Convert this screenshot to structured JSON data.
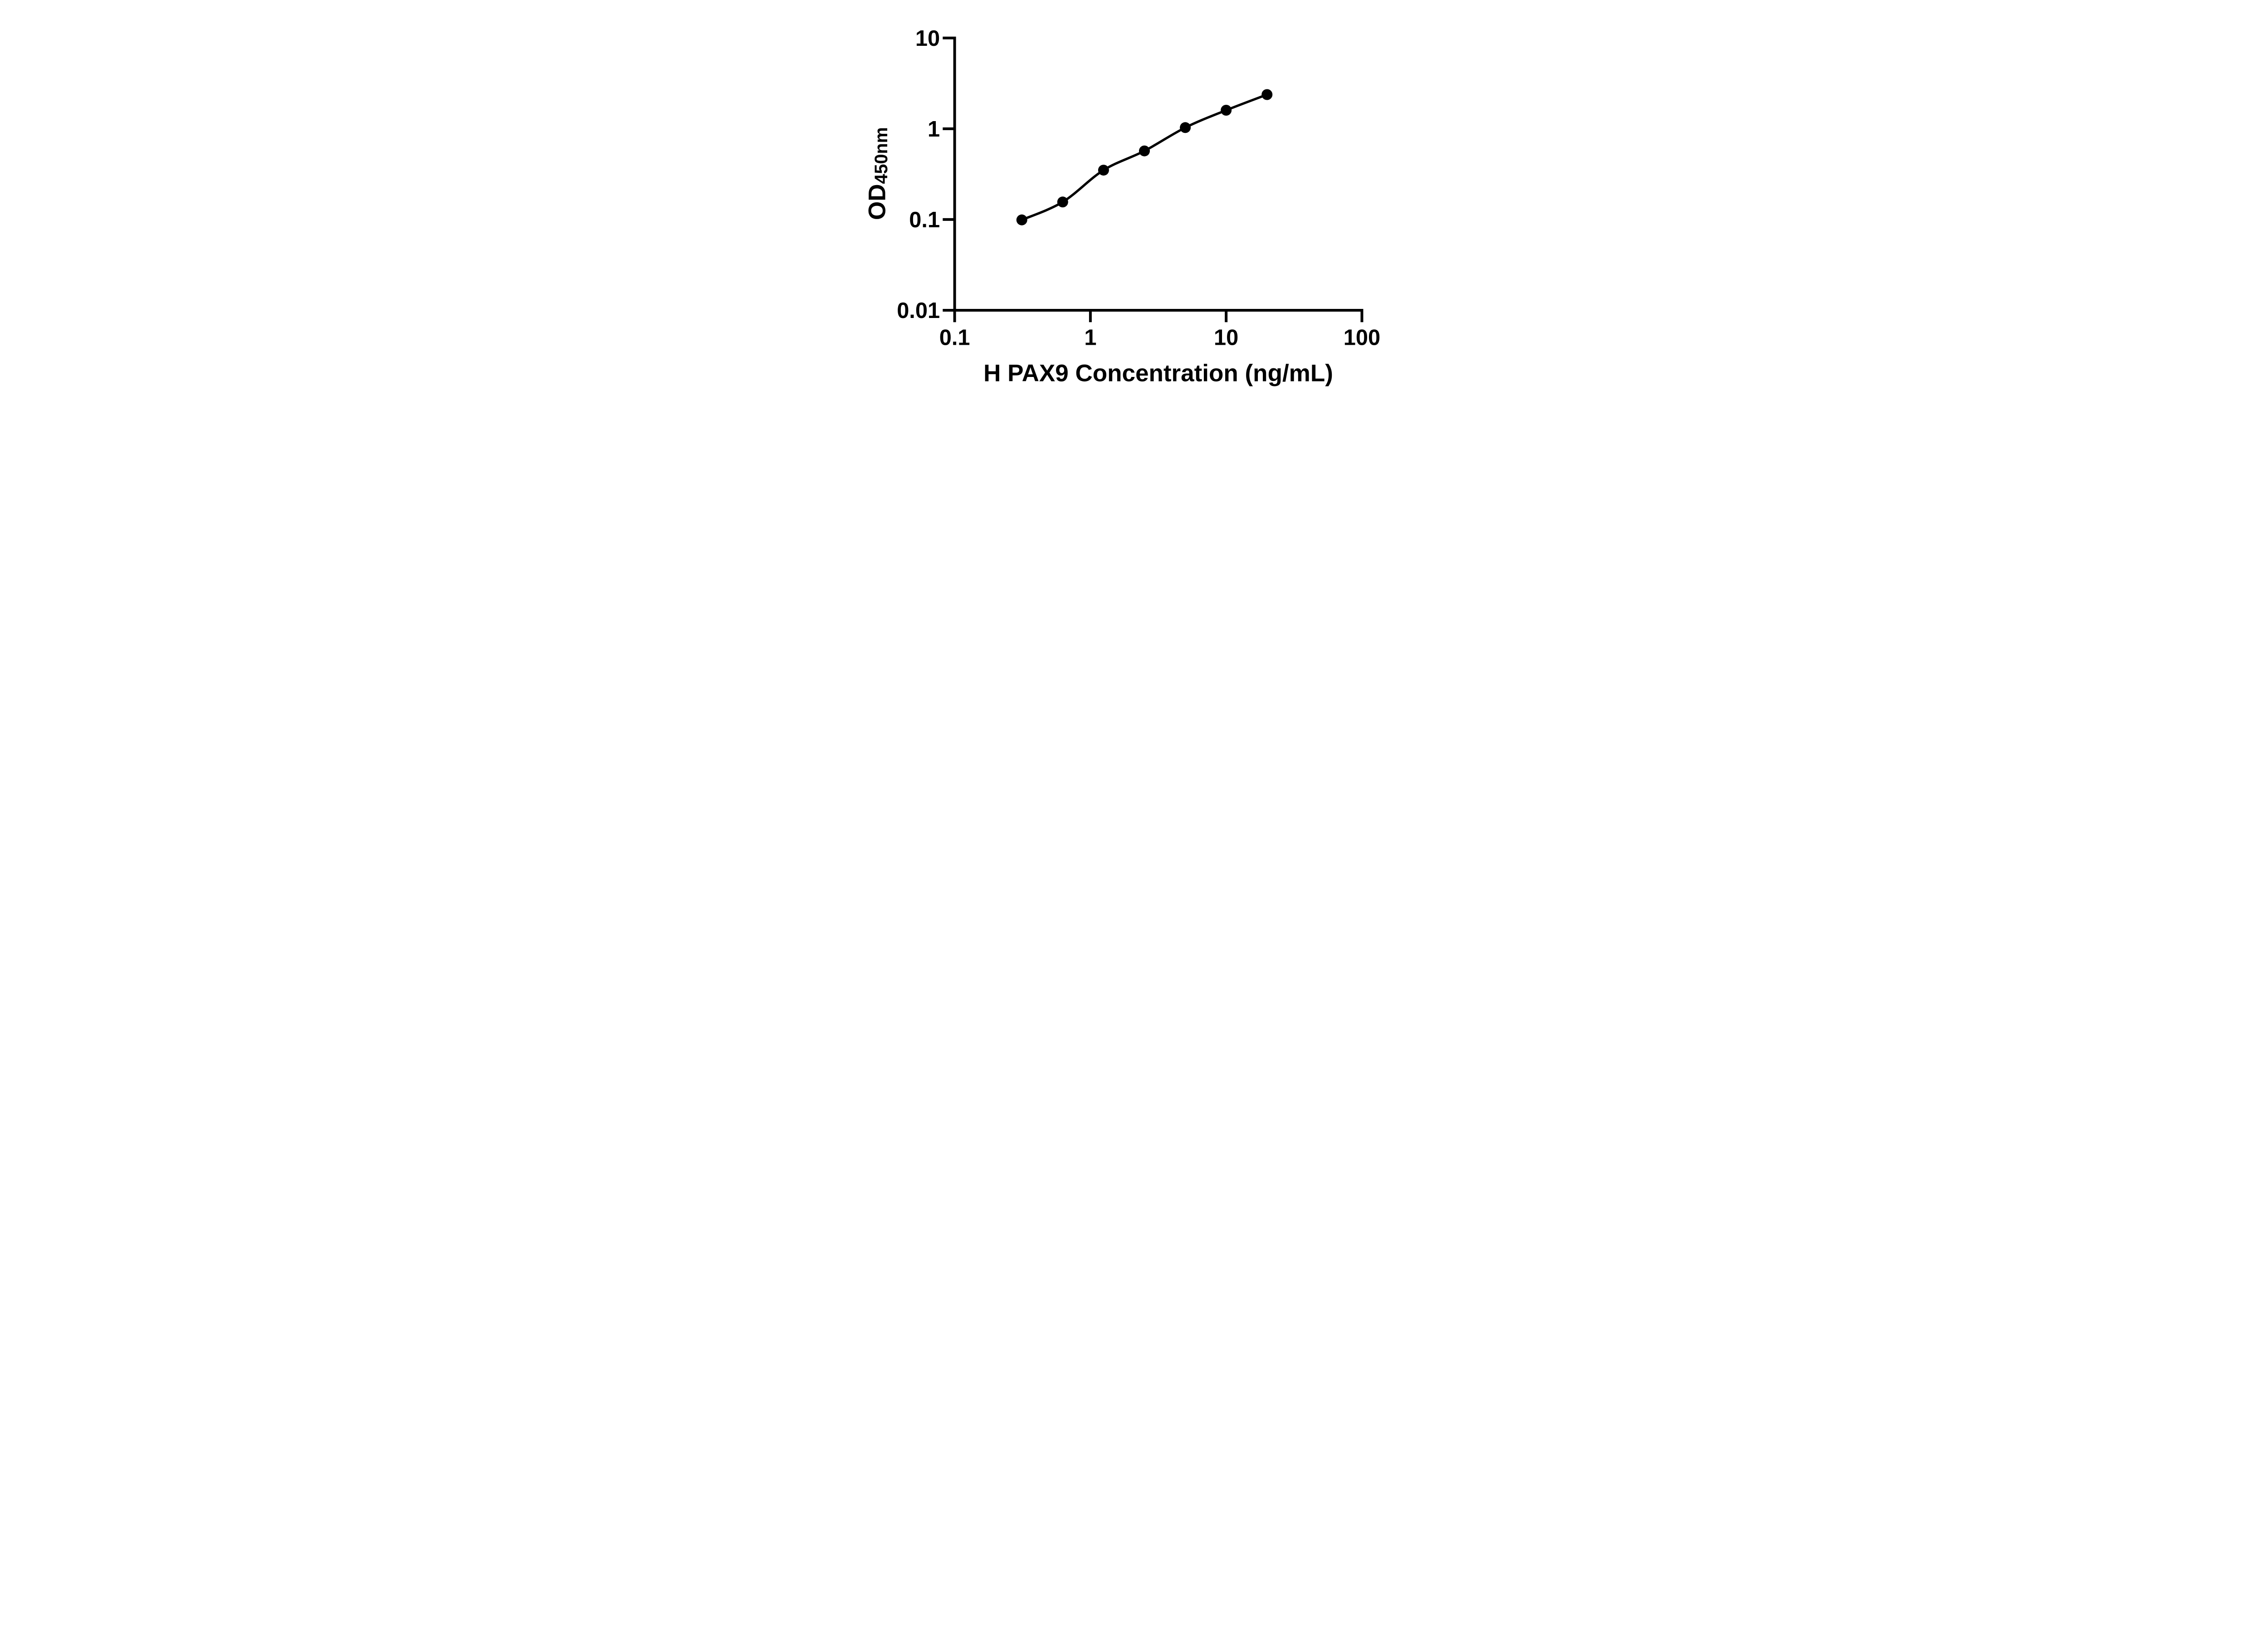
{
  "figure": {
    "background": "#ffffff",
    "ink_color": "#000000"
  },
  "chart_data": {
    "type": "scatter",
    "title": "",
    "xlabel": "H PAX9 Concentration (ng/mL)",
    "ylabel": "OD450nm",
    "ylabel_parts": {
      "base": "OD",
      "subscript": "450nm"
    },
    "x_scale": "log",
    "y_scale": "log",
    "xlim": [
      0.1,
      100
    ],
    "ylim": [
      0.01,
      10
    ],
    "x_ticks": [
      0.1,
      1,
      10,
      100
    ],
    "x_tick_labels": [
      "0.1",
      "1",
      "10",
      "100"
    ],
    "y_ticks": [
      0.01,
      0.1,
      1,
      10
    ],
    "y_tick_labels": [
      "0.01",
      "0.1",
      "1",
      "10"
    ],
    "x": [
      0.3125,
      0.625,
      1.25,
      2.5,
      5,
      10,
      20
    ],
    "series": [
      {
        "values": [
          0.099,
          0.156,
          0.35,
          0.57,
          1.03,
          1.6,
          2.38
        ]
      }
    ],
    "grid": false,
    "legend": "none",
    "marker": "filled-circle",
    "marker_color": "#000000",
    "line_color": "#000000",
    "connector": "smooth-curve"
  }
}
